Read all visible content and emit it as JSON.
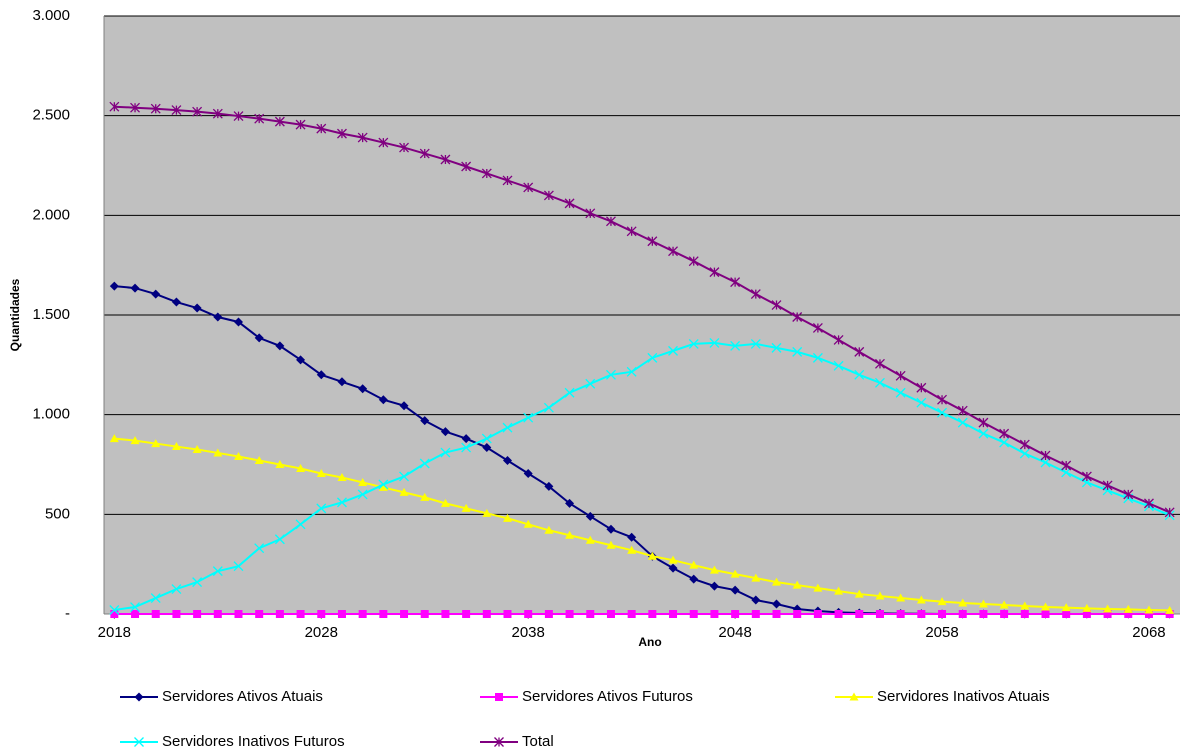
{
  "chart_data": {
    "type": "line",
    "x_label": "Ano",
    "y_label": "Quantidades",
    "x": [
      2018,
      2019,
      2020,
      2021,
      2022,
      2023,
      2024,
      2025,
      2026,
      2027,
      2028,
      2029,
      2030,
      2031,
      2032,
      2033,
      2034,
      2035,
      2036,
      2037,
      2038,
      2039,
      2040,
      2041,
      2042,
      2043,
      2044,
      2045,
      2046,
      2047,
      2048,
      2049,
      2050,
      2051,
      2052,
      2053,
      2054,
      2055,
      2056,
      2057,
      2058,
      2059,
      2060,
      2061,
      2062,
      2063,
      2064,
      2065,
      2066,
      2067,
      2068,
      2069
    ],
    "xlim": [
      2017.5,
      2069.5
    ],
    "xticks": [
      2018,
      2028,
      2038,
      2048,
      2058,
      2068
    ],
    "ylim": [
      0,
      3000
    ],
    "yticks": [
      {
        "value": 0,
        "label": "-"
      },
      500,
      {
        "value": 1000,
        "label": "1.000"
      },
      {
        "value": 1500,
        "label": "1.500"
      },
      {
        "value": 2000,
        "label": "2.000"
      },
      {
        "value": 2500,
        "label": "2.500"
      },
      {
        "value": 3000,
        "label": "3.000"
      }
    ],
    "grid": true,
    "series": [
      {
        "name": "Servidores Ativos Atuais",
        "color": "#000080",
        "marker": "diamond",
        "values": [
          1645,
          1635,
          1605,
          1565,
          1535,
          1490,
          1465,
          1385,
          1345,
          1275,
          1200,
          1165,
          1130,
          1075,
          1045,
          970,
          915,
          880,
          835,
          770,
          705,
          640,
          555,
          490,
          425,
          385,
          290,
          230,
          175,
          140,
          120,
          70,
          50,
          25,
          15,
          8,
          5,
          3,
          2,
          1,
          0,
          0,
          0,
          0,
          0,
          0,
          0,
          0,
          0,
          0,
          0,
          0
        ]
      },
      {
        "name": "Servidores Ativos Futuros",
        "color": "#ff00ff",
        "marker": "square",
        "values": [
          0,
          0,
          0,
          0,
          0,
          0,
          0,
          0,
          0,
          0,
          0,
          0,
          0,
          0,
          0,
          0,
          0,
          0,
          0,
          0,
          0,
          0,
          0,
          0,
          0,
          0,
          0,
          0,
          0,
          0,
          0,
          0,
          0,
          0,
          0,
          0,
          0,
          0,
          0,
          0,
          0,
          0,
          0,
          0,
          0,
          0,
          0,
          0,
          0,
          0,
          0,
          0
        ]
      },
      {
        "name": "Servidores Inativos Atuais",
        "color": "#ffff00",
        "marker": "triangle",
        "values": [
          880,
          870,
          855,
          840,
          825,
          808,
          790,
          770,
          750,
          730,
          705,
          685,
          660,
          635,
          610,
          585,
          555,
          530,
          505,
          480,
          450,
          420,
          395,
          370,
          345,
          320,
          290,
          270,
          245,
          220,
          200,
          180,
          160,
          145,
          130,
          115,
          100,
          90,
          80,
          70,
          62,
          55,
          50,
          45,
          40,
          35,
          32,
          28,
          25,
          23,
          20,
          18
        ]
      },
      {
        "name": "Servidores Inativos Futuros",
        "color": "#00ffff",
        "marker": "x",
        "values": [
          20,
          35,
          80,
          125,
          160,
          215,
          240,
          330,
          375,
          450,
          530,
          560,
          600,
          650,
          690,
          755,
          810,
          835,
          880,
          935,
          985,
          1035,
          1110,
          1155,
          1200,
          1215,
          1285,
          1320,
          1355,
          1360,
          1345,
          1355,
          1335,
          1315,
          1285,
          1245,
          1200,
          1160,
          1110,
          1060,
          1010,
          960,
          905,
          860,
          805,
          760,
          710,
          660,
          620,
          580,
          540,
          495
        ]
      },
      {
        "name": "Total",
        "color": "#800080",
        "marker": "star",
        "values": [
          2545,
          2540,
          2535,
          2528,
          2520,
          2510,
          2498,
          2485,
          2470,
          2455,
          2435,
          2410,
          2390,
          2365,
          2340,
          2310,
          2280,
          2245,
          2210,
          2175,
          2140,
          2100,
          2060,
          2010,
          1970,
          1920,
          1870,
          1820,
          1770,
          1715,
          1665,
          1605,
          1550,
          1490,
          1435,
          1375,
          1315,
          1255,
          1195,
          1135,
          1075,
          1020,
          960,
          905,
          850,
          795,
          745,
          690,
          645,
          600,
          555,
          510
        ]
      }
    ]
  }
}
